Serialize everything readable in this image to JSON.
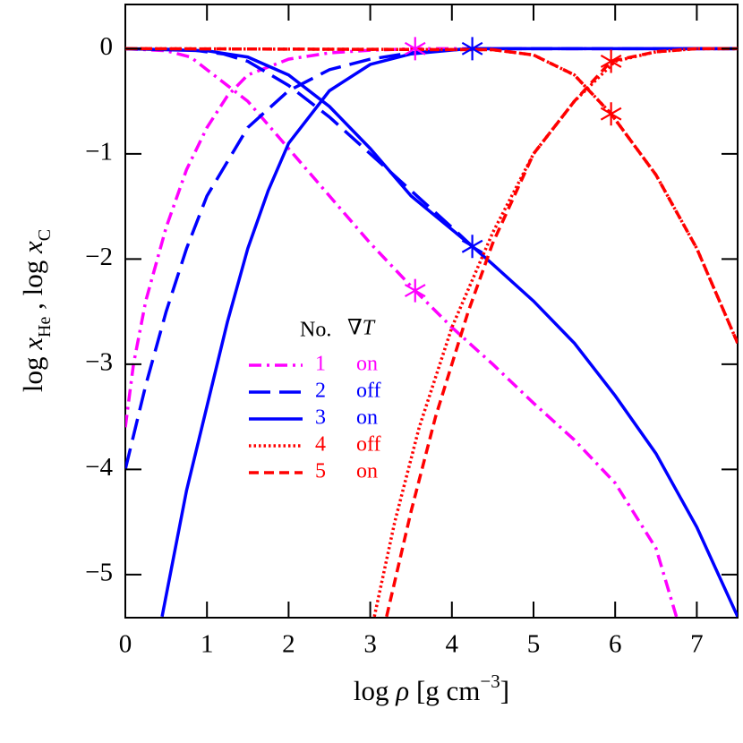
{
  "chart_data": {
    "type": "line",
    "xlabel": [
      "log ",
      "ρ",
      " [g cm",
      "−3",
      "]"
    ],
    "ylabel": [
      "log ",
      "x",
      "He",
      " , log ",
      "x",
      "C"
    ],
    "xlim": [
      0,
      7.5
    ],
    "ylim": [
      -5.41,
      0.42
    ],
    "xticks": [
      0,
      1,
      2,
      3,
      4,
      5,
      6,
      7
    ],
    "yticks": [
      0,
      {
        "value": -1,
        "label": "−1"
      },
      {
        "value": -2,
        "label": "−2"
      },
      {
        "value": -3,
        "label": "−3"
      },
      {
        "value": -4,
        "label": "−4"
      },
      {
        "value": -5,
        "label": "−5"
      }
    ],
    "legend_headers": [
      "No.",
      "∇T"
    ],
    "series": [
      {
        "name": "1",
        "state": "on",
        "color": "#ff00ff",
        "style": "dashdot",
        "curves": [
          {
            "x": [
              0,
              0.5,
              0.8,
              1.0,
              1.5,
              2.0,
              2.5,
              3.0,
              3.55,
              4.0,
              4.5,
              5.0,
              5.5,
              6.0,
              6.5,
              6.75
            ],
            "values": [
              0,
              -0.02,
              -0.08,
              -0.2,
              -0.5,
              -0.95,
              -1.4,
              -1.85,
              -2.3,
              -2.65,
              -3.0,
              -3.37,
              -3.72,
              -4.13,
              -4.75,
              -5.4
            ]
          },
          {
            "x": [
              0,
              0.1,
              0.25,
              0.5,
              0.75,
              1.0,
              1.25,
              1.5,
              2.0,
              2.5,
              3.0,
              3.55,
              7.5
            ],
            "values": [
              -3.6,
              -3.0,
              -2.4,
              -1.7,
              -1.15,
              -0.75,
              -0.45,
              -0.25,
              -0.1,
              -0.04,
              -0.015,
              0,
              0
            ]
          }
        ],
        "markers": {
          "x": [
            3.55,
            3.55
          ],
          "values": [
            0,
            -2.3
          ]
        }
      },
      {
        "name": "2",
        "state": "off",
        "color": "#0000ff",
        "style": "longdash",
        "curves": [
          {
            "x": [
              0,
              0.8,
              1.2,
              1.5,
              2.0,
              2.5,
              3.0,
              3.5,
              4.0,
              4.25
            ],
            "values": [
              0,
              -0.01,
              -0.05,
              -0.12,
              -0.35,
              -0.65,
              -1.0,
              -1.35,
              -1.7,
              -1.88
            ]
          },
          {
            "x": [
              0,
              0.25,
              0.5,
              0.75,
              1.0,
              1.5,
              2.0,
              2.5,
              3.0,
              3.5,
              4.2,
              7.5
            ],
            "values": [
              -4.0,
              -3.2,
              -2.5,
              -1.9,
              -1.4,
              -0.75,
              -0.4,
              -0.2,
              -0.1,
              -0.04,
              0,
              0
            ]
          }
        ]
      },
      {
        "name": "3",
        "state": "on",
        "color": "#0000ff",
        "style": "solid",
        "curves": [
          {
            "x": [
              0,
              1.0,
              1.5,
              2.0,
              2.5,
              3.0,
              3.5,
              4.25,
              4.5,
              5.0,
              5.5,
              6.0,
              6.5,
              7.0,
              7.5
            ],
            "values": [
              0,
              -0.02,
              -0.08,
              -0.25,
              -0.55,
              -0.95,
              -1.4,
              -1.88,
              -2.05,
              -2.4,
              -2.8,
              -3.3,
              -3.85,
              -4.55,
              -5.4
            ]
          },
          {
            "x": [
              0.45,
              0.75,
              1.0,
              1.25,
              1.5,
              1.75,
              2.0,
              2.5,
              3.0,
              3.5,
              4.2,
              7.5
            ],
            "values": [
              -5.4,
              -4.2,
              -3.4,
              -2.6,
              -1.9,
              -1.35,
              -0.9,
              -0.4,
              -0.15,
              -0.05,
              0,
              0
            ]
          }
        ],
        "markers": {
          "x": [
            4.25,
            4.25
          ],
          "values": [
            0,
            -1.88
          ]
        }
      },
      {
        "name": "4",
        "state": "off",
        "color": "#ff0000",
        "style": "dotted",
        "curves": [
          {
            "x": [
              0,
              4.5,
              5.0,
              5.5,
              5.95,
              6.5,
              7.0,
              7.5
            ],
            "values": [
              0,
              -0.01,
              -0.06,
              -0.25,
              -0.62,
              -1.2,
              -1.9,
              -2.8
            ]
          },
          {
            "x": [
              3.05,
              3.3,
              3.6,
              4.0,
              4.5,
              5.0,
              5.5,
              6.0,
              6.5,
              7.0,
              7.5
            ],
            "values": [
              -5.4,
              -4.5,
              -3.6,
              -2.65,
              -1.75,
              -1.0,
              -0.5,
              -0.12,
              -0.03,
              0,
              0
            ]
          }
        ]
      },
      {
        "name": "5",
        "state": "on",
        "color": "#ff0000",
        "style": "dashed",
        "curves": [
          {
            "x": [
              0,
              4.5,
              5.0,
              5.5,
              5.95,
              6.5,
              7.0,
              7.5
            ],
            "values": [
              0,
              -0.01,
              -0.06,
              -0.25,
              -0.62,
              -1.2,
              -1.9,
              -2.8
            ]
          },
          {
            "x": [
              3.2,
              3.5,
              3.8,
              4.2,
              4.5,
              5.0,
              5.5,
              5.95,
              6.5,
              7.0,
              7.5
            ],
            "values": [
              -5.4,
              -4.4,
              -3.5,
              -2.5,
              -1.85,
              -1.0,
              -0.5,
              -0.12,
              -0.03,
              0,
              0
            ]
          }
        ],
        "markers": {
          "x": [
            5.95,
            5.95
          ],
          "values": [
            -0.12,
            -0.62
          ]
        }
      }
    ]
  }
}
